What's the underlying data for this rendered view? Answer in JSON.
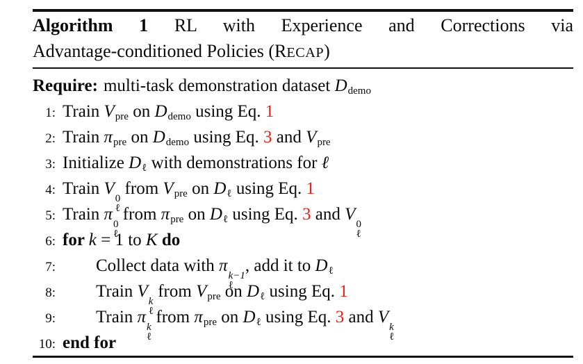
{
  "colors": {
    "background": "#ffffff",
    "text": "#0a0a0a",
    "rule": "#101010",
    "ref_red": "#ed1c16"
  },
  "algorithm": {
    "caption": {
      "line1": [
        {
          "t": "Algorithm 1",
          "st": "b"
        },
        {
          "t": " RL with Experience and Corrections via",
          "st": ""
        }
      ],
      "line2": [
        {
          "t": "Advantage-conditioned Policies (R",
          "st": ""
        },
        {
          "t": "ECAP",
          "st": "sc"
        },
        {
          "t": ")",
          "st": ""
        }
      ]
    },
    "require": {
      "label": "Require:",
      "tokens": [
        {
          "t": "multi-task demonstration dataset ",
          "st": ""
        },
        {
          "t": "D",
          "st": "cal"
        },
        {
          "t": "demo",
          "st": "",
          "pos": "sub"
        }
      ]
    },
    "lines": [
      {
        "num": "1:",
        "indent": 0,
        "tokens": [
          {
            "t": "Train ",
            "st": ""
          },
          {
            "t": "V",
            "st": "i"
          },
          {
            "t": "pre",
            "st": "",
            "pos": "sub"
          },
          {
            "t": " on ",
            "st": ""
          },
          {
            "t": "D",
            "st": "cal"
          },
          {
            "t": "demo",
            "st": "",
            "pos": "sub"
          },
          {
            "t": " using Eq. ",
            "st": ""
          },
          {
            "t": "1",
            "st": "r"
          }
        ]
      },
      {
        "num": "2:",
        "indent": 0,
        "tokens": [
          {
            "t": "Train ",
            "st": ""
          },
          {
            "t": "π",
            "st": "i"
          },
          {
            "t": "pre",
            "st": "",
            "pos": "sub"
          },
          {
            "t": " on ",
            "st": ""
          },
          {
            "t": "D",
            "st": "cal"
          },
          {
            "t": "demo",
            "st": "",
            "pos": "sub"
          },
          {
            "t": " using Eq. ",
            "st": ""
          },
          {
            "t": "3",
            "st": "r"
          },
          {
            "t": " and ",
            "st": ""
          },
          {
            "t": "V",
            "st": "i"
          },
          {
            "t": "pre",
            "st": "",
            "pos": "sub"
          }
        ]
      },
      {
        "num": "3:",
        "indent": 0,
        "tokens": [
          {
            "t": "Initialize ",
            "st": ""
          },
          {
            "t": "D",
            "st": "cal"
          },
          {
            "t": "ℓ",
            "st": "",
            "pos": "sub"
          },
          {
            "t": " with demonstrations for ",
            "st": ""
          },
          {
            "t": "ℓ",
            "st": "i"
          }
        ]
      },
      {
        "num": "4:",
        "indent": 0,
        "tokens": [
          {
            "t": "Train ",
            "st": ""
          },
          {
            "t": "V",
            "st": "i"
          },
          {
            "ss": {
              "sup": "0",
              "supSt": "",
              "sub": "ℓ",
              "subSt": ""
            }
          },
          {
            "t": " from ",
            "st": ""
          },
          {
            "t": "V",
            "st": "i"
          },
          {
            "t": "pre",
            "st": "",
            "pos": "sub"
          },
          {
            "t": " on ",
            "st": ""
          },
          {
            "t": "D",
            "st": "cal"
          },
          {
            "t": "ℓ",
            "st": "",
            "pos": "sub"
          },
          {
            "t": " using Eq. ",
            "st": ""
          },
          {
            "t": "1",
            "st": "r"
          }
        ]
      },
      {
        "num": "5:",
        "indent": 0,
        "tokens": [
          {
            "t": "Train ",
            "st": ""
          },
          {
            "t": "π",
            "st": "i"
          },
          {
            "ss": {
              "sup": "0",
              "supSt": "",
              "sub": "ℓ",
              "subSt": ""
            }
          },
          {
            "t": " from ",
            "st": ""
          },
          {
            "t": "π",
            "st": "i"
          },
          {
            "t": "pre",
            "st": "",
            "pos": "sub"
          },
          {
            "t": " on ",
            "st": ""
          },
          {
            "t": "D",
            "st": "cal"
          },
          {
            "t": "ℓ",
            "st": "",
            "pos": "sub"
          },
          {
            "t": " using Eq. ",
            "st": ""
          },
          {
            "t": "3",
            "st": "r"
          },
          {
            "t": " and ",
            "st": ""
          },
          {
            "t": "V",
            "st": "i"
          },
          {
            "ss": {
              "sup": "0",
              "supSt": "",
              "sub": "ℓ",
              "subSt": ""
            }
          }
        ]
      },
      {
        "num": "6:",
        "indent": 0,
        "tokens": [
          {
            "t": "for ",
            "st": "b"
          },
          {
            "t": "k",
            "st": "i"
          },
          {
            "t": " = 1 to ",
            "st": ""
          },
          {
            "t": "K",
            "st": "i"
          },
          {
            "t": " do",
            "st": "b"
          }
        ]
      },
      {
        "num": "7:",
        "indent": 1,
        "tokens": [
          {
            "t": "Collect data with ",
            "st": ""
          },
          {
            "t": "π",
            "st": "i"
          },
          {
            "ss": {
              "sup": "k−1",
              "supSt": "i",
              "sub": "ℓ",
              "subSt": ""
            }
          },
          {
            "t": ", add it to ",
            "st": ""
          },
          {
            "t": "D",
            "st": "cal"
          },
          {
            "t": "ℓ",
            "st": "",
            "pos": "sub"
          }
        ]
      },
      {
        "num": "8:",
        "indent": 1,
        "tokens": [
          {
            "t": "Train ",
            "st": ""
          },
          {
            "t": "V",
            "st": "i"
          },
          {
            "ss": {
              "sup": "k",
              "supSt": "i",
              "sub": "ℓ",
              "subSt": ""
            }
          },
          {
            "t": " from ",
            "st": ""
          },
          {
            "t": "V",
            "st": "i"
          },
          {
            "t": "pre",
            "st": "",
            "pos": "sub"
          },
          {
            "t": " on ",
            "st": ""
          },
          {
            "t": "D",
            "st": "cal"
          },
          {
            "t": "ℓ",
            "st": "",
            "pos": "sub"
          },
          {
            "t": " using Eq. ",
            "st": ""
          },
          {
            "t": "1",
            "st": "r"
          }
        ]
      },
      {
        "num": "9:",
        "indent": 1,
        "tokens": [
          {
            "t": "Train ",
            "st": ""
          },
          {
            "t": "π",
            "st": "i"
          },
          {
            "ss": {
              "sup": "k",
              "supSt": "i",
              "sub": "ℓ",
              "subSt": ""
            }
          },
          {
            "t": " from ",
            "st": ""
          },
          {
            "t": "π",
            "st": "i"
          },
          {
            "t": "pre",
            "st": "",
            "pos": "sub"
          },
          {
            "t": " on ",
            "st": ""
          },
          {
            "t": "D",
            "st": "cal"
          },
          {
            "t": "ℓ",
            "st": "",
            "pos": "sub"
          },
          {
            "t": " using Eq. ",
            "st": ""
          },
          {
            "t": "3",
            "st": "r"
          },
          {
            "t": " and ",
            "st": ""
          },
          {
            "t": "V",
            "st": "i"
          },
          {
            "ss": {
              "sup": "k",
              "supSt": "i",
              "sub": "ℓ",
              "subSt": ""
            }
          }
        ]
      },
      {
        "num": "10:",
        "indent": 0,
        "tokens": [
          {
            "t": "end for",
            "st": "b"
          }
        ]
      }
    ]
  }
}
